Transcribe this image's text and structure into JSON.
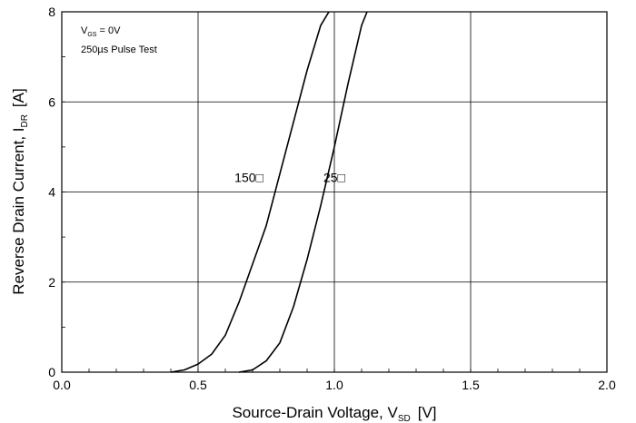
{
  "chart_data": {
    "type": "line",
    "title": "",
    "xlabel": {
      "main": "Source-Drain Voltage, V",
      "sub": "SD",
      "unit": "[V]"
    },
    "ylabel": {
      "main": "Reverse Drain Current, I",
      "sub": "DR",
      "unit": "[A]"
    },
    "xlim": [
      0.0,
      2.0
    ],
    "ylim": [
      0,
      8
    ],
    "x_ticks": [
      "0.0",
      "0.5",
      "1.0",
      "1.5",
      "2.0"
    ],
    "y_ticks": [
      "0",
      "2",
      "4",
      "6",
      "8"
    ],
    "grid": true,
    "annotations": {
      "vgs": {
        "main": "V",
        "sub": "GS",
        "rest": " = 0V"
      },
      "pulse": "250µs Pulse Test"
    },
    "series": [
      {
        "label": "150□",
        "x": [
          0.4,
          0.45,
          0.5,
          0.55,
          0.6,
          0.65,
          0.7,
          0.75,
          0.8,
          0.85,
          0.9,
          0.95,
          0.98
        ],
        "y": [
          0.0,
          0.05,
          0.18,
          0.4,
          0.82,
          1.55,
          2.4,
          3.25,
          4.4,
          5.55,
          6.7,
          7.7,
          8.0
        ]
      },
      {
        "label": "25□",
        "x": [
          0.65,
          0.7,
          0.75,
          0.8,
          0.85,
          0.9,
          0.95,
          1.0,
          1.05,
          1.1,
          1.12
        ],
        "y": [
          0.0,
          0.05,
          0.25,
          0.65,
          1.45,
          2.5,
          3.7,
          5.0,
          6.4,
          7.7,
          8.0
        ]
      }
    ],
    "label_positions_data": [
      {
        "x": 0.74,
        "y": 4.2
      },
      {
        "x": 1.04,
        "y": 4.2
      }
    ]
  }
}
